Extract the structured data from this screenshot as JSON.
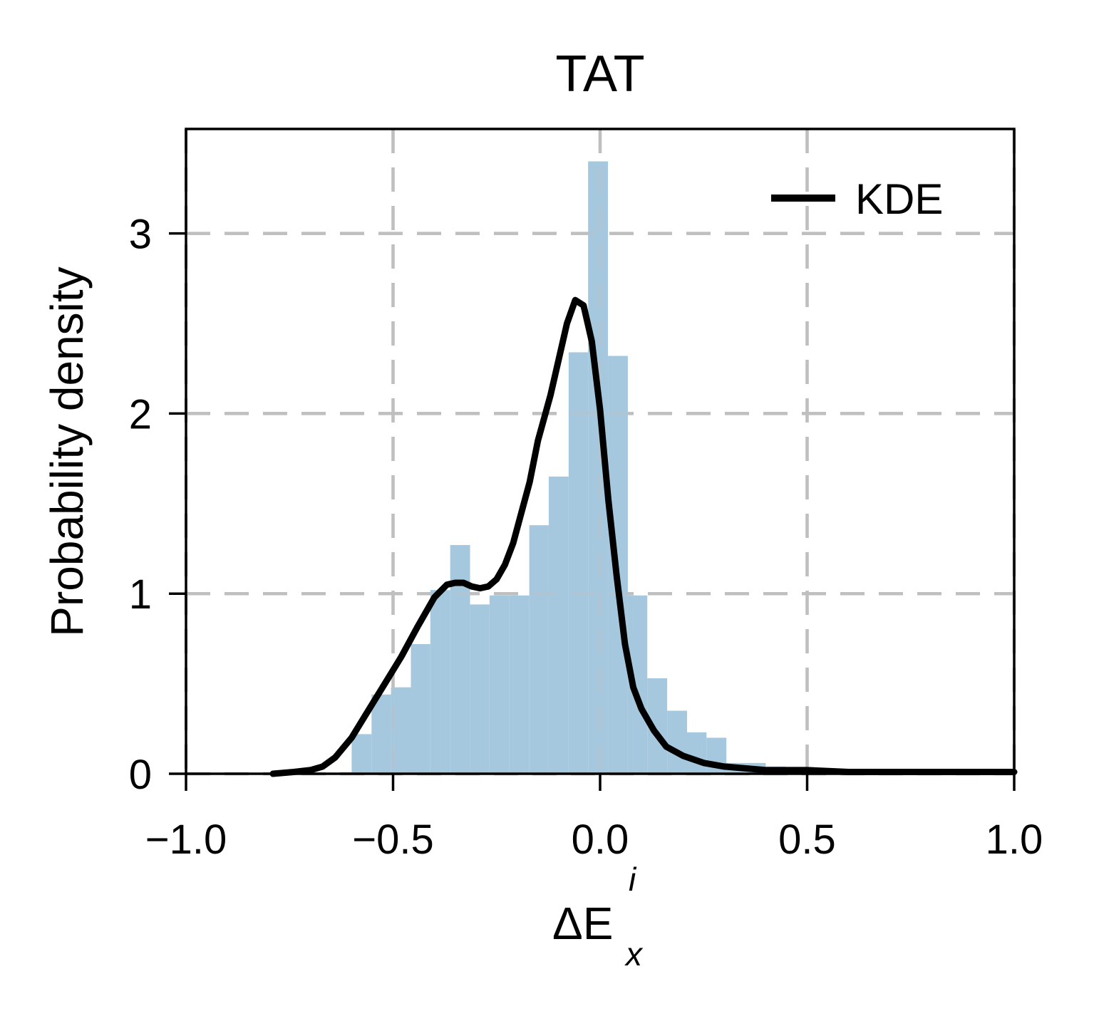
{
  "chart_data": {
    "type": "bar",
    "title": "TAT",
    "xlabel": {
      "base": "ΔE",
      "subscript": "x",
      "superscript": "i"
    },
    "ylabel": "Probability density",
    "xlim": [
      -1.0,
      1.0
    ],
    "ylim": [
      0,
      3.58
    ],
    "xticks": [
      -1.0,
      -0.5,
      0.0,
      0.5,
      1.0
    ],
    "xtick_labels": [
      "−1.0",
      "−0.5",
      "0.0",
      "0.5",
      "1.0"
    ],
    "yticks": [
      0,
      1,
      2,
      3
    ],
    "ytick_labels": [
      "0",
      "1",
      "2",
      "3"
    ],
    "grid": true,
    "legend_position": "top-right",
    "colors": {
      "histogram": "#a6c8df",
      "kde": "#000000",
      "grid": "#bfbfbf"
    },
    "histogram": {
      "bin_edges": [
        -0.6,
        -0.552,
        -0.505,
        -0.457,
        -0.41,
        -0.362,
        -0.314,
        -0.267,
        -0.219,
        -0.171,
        -0.124,
        -0.076,
        -0.029,
        0.019,
        0.067,
        0.114,
        0.162,
        0.21,
        0.257,
        0.305,
        0.352,
        0.4,
        0.448
      ],
      "densities": [
        0.22,
        0.44,
        0.48,
        0.72,
        1.02,
        1.27,
        0.94,
        0.99,
        0.99,
        1.38,
        1.65,
        2.34,
        3.4,
        2.32,
        0.99,
        0.53,
        0.35,
        0.23,
        0.2,
        0.06,
        0.06,
        0.04
      ]
    },
    "series": [
      {
        "name": "KDE",
        "type": "line",
        "x": [
          -0.79,
          -0.74,
          -0.7,
          -0.67,
          -0.64,
          -0.6,
          -0.56,
          -0.52,
          -0.48,
          -0.44,
          -0.4,
          -0.37,
          -0.35,
          -0.33,
          -0.31,
          -0.29,
          -0.27,
          -0.25,
          -0.23,
          -0.21,
          -0.19,
          -0.17,
          -0.15,
          -0.12,
          -0.1,
          -0.08,
          -0.06,
          -0.04,
          -0.02,
          0.0,
          0.02,
          0.04,
          0.06,
          0.08,
          0.1,
          0.13,
          0.16,
          0.2,
          0.25,
          0.3,
          0.35,
          0.4,
          0.5,
          0.6,
          0.7,
          0.8,
          1.0
        ],
        "y": [
          0.0,
          0.01,
          0.02,
          0.04,
          0.09,
          0.2,
          0.35,
          0.5,
          0.65,
          0.82,
          0.98,
          1.05,
          1.06,
          1.06,
          1.04,
          1.03,
          1.04,
          1.08,
          1.16,
          1.28,
          1.45,
          1.62,
          1.85,
          2.1,
          2.3,
          2.5,
          2.63,
          2.6,
          2.4,
          2.02,
          1.52,
          1.1,
          0.72,
          0.48,
          0.36,
          0.24,
          0.15,
          0.1,
          0.06,
          0.04,
          0.03,
          0.02,
          0.02,
          0.01,
          0.01,
          0.01,
          0.01
        ]
      }
    ]
  }
}
